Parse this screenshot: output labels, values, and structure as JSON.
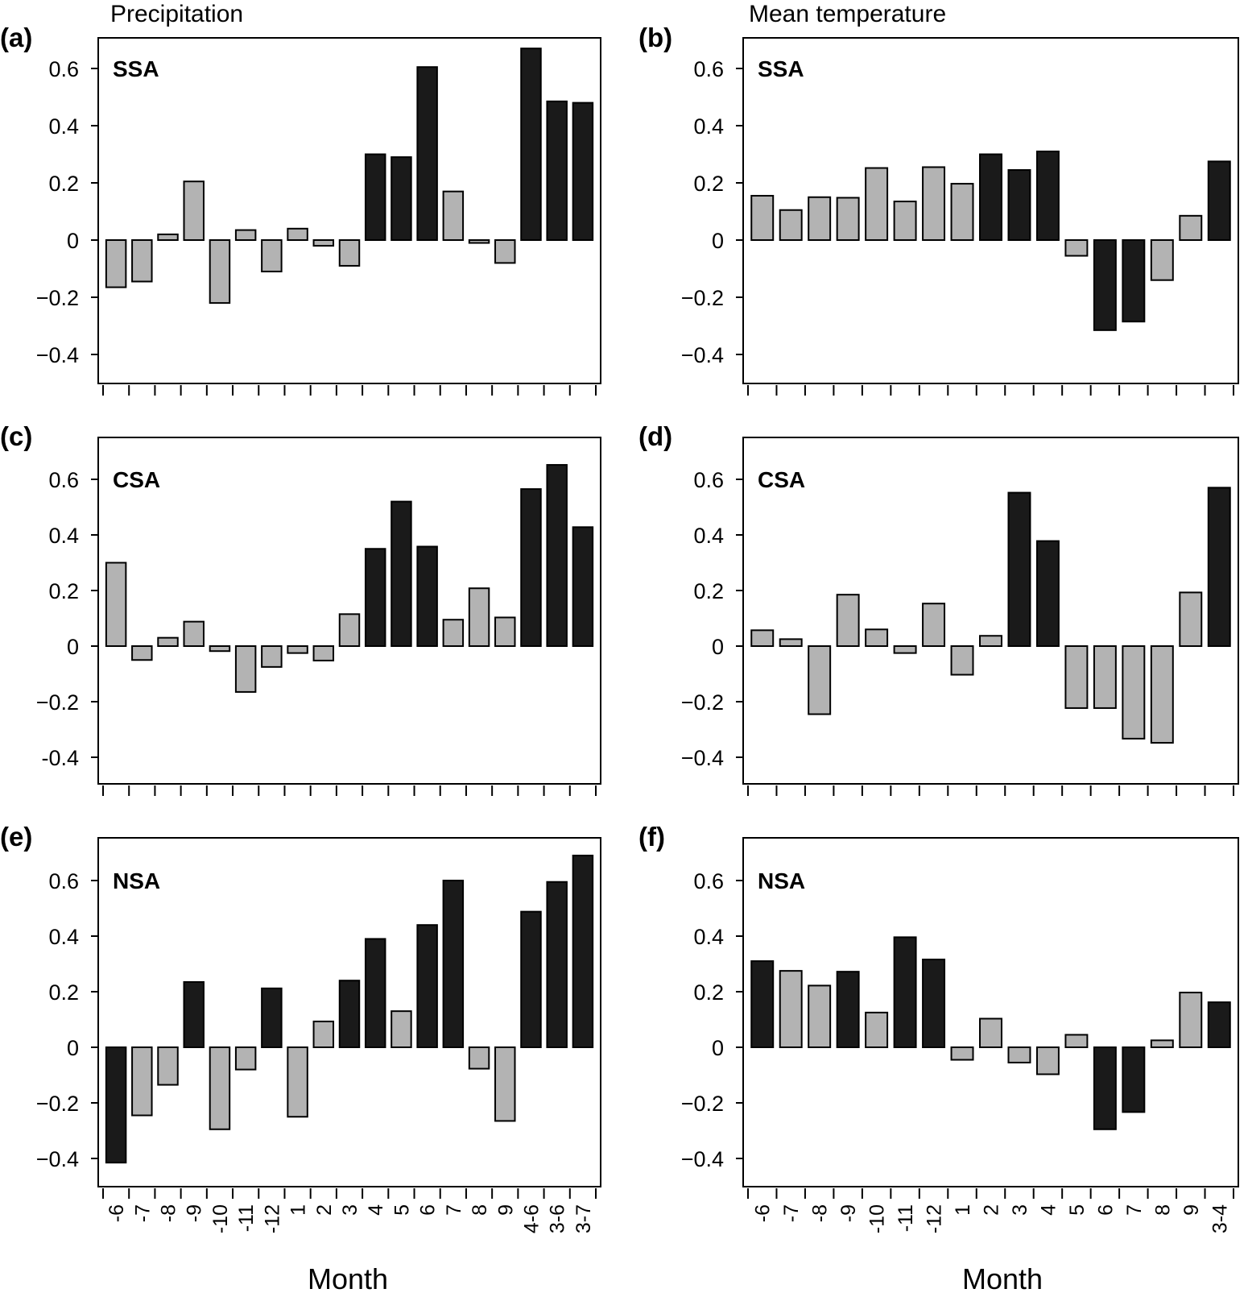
{
  "figure": {
    "column_titles": [
      "Precipitation",
      "Mean temperature"
    ],
    "x_axis_title": "Month",
    "colors": {
      "significant": "#1a1a1a",
      "not_significant": "#b3b3b3",
      "outline": "#000000"
    }
  },
  "chart_data": [
    {
      "type": "bar",
      "panel": "(a)",
      "region": "SSA",
      "variable": "Precipitation",
      "xlabel": "Month",
      "ylabel": "",
      "ylim": [
        -0.5,
        0.73
      ],
      "yticks": [
        -0.4,
        -0.2,
        0,
        0.2,
        0.4,
        0.6
      ],
      "ytick_labels": [
        "−0.4",
        "−0.2",
        "0",
        "0.2",
        "0.4",
        "0.6"
      ],
      "categories": [
        "-6",
        "-7",
        "-8",
        "-9",
        "-10",
        "-11",
        "-12",
        "1",
        "2",
        "3",
        "4",
        "5",
        "6",
        "7",
        "8",
        "9",
        "4-6",
        "3-6",
        "3-7"
      ],
      "values": [
        -0.165,
        -0.145,
        0.02,
        0.205,
        -0.22,
        0.035,
        -0.11,
        0.04,
        -0.02,
        -0.09,
        0.3,
        0.29,
        0.605,
        0.17,
        -0.01,
        -0.08,
        0.67,
        0.485,
        0.48
      ],
      "significant": [
        false,
        false,
        false,
        false,
        false,
        false,
        false,
        false,
        false,
        false,
        true,
        true,
        true,
        false,
        false,
        false,
        true,
        true,
        true
      ]
    },
    {
      "type": "bar",
      "panel": "(b)",
      "region": "SSA",
      "variable": "Mean temperature",
      "xlabel": "Month",
      "ylabel": "",
      "ylim": [
        -0.5,
        0.73
      ],
      "yticks": [
        -0.4,
        -0.2,
        0,
        0.2,
        0.4,
        0.6
      ],
      "ytick_labels": [
        "−0.4",
        "−0.2",
        "0",
        "0.2",
        "0.4",
        "0.6"
      ],
      "categories": [
        "-6",
        "-7",
        "-8",
        "-9",
        "-10",
        "-11",
        "-12",
        "1",
        "2",
        "3",
        "4",
        "5",
        "6",
        "7",
        "8",
        "9",
        "3-4"
      ],
      "values": [
        0.155,
        0.105,
        0.15,
        0.148,
        0.252,
        0.135,
        0.255,
        0.197,
        0.3,
        0.245,
        0.31,
        -0.055,
        -0.315,
        -0.285,
        -0.14,
        0.085,
        0.275
      ],
      "significant": [
        false,
        false,
        false,
        false,
        false,
        false,
        false,
        false,
        true,
        true,
        true,
        false,
        true,
        true,
        false,
        false,
        true
      ]
    },
    {
      "type": "bar",
      "panel": "(c)",
      "region": "CSA",
      "variable": "Precipitation",
      "xlabel": "Month",
      "ylabel": "",
      "ylim": [
        -0.49,
        0.75
      ],
      "yticks": [
        -0.4,
        -0.2,
        0,
        0.2,
        0.4,
        0.6
      ],
      "ytick_labels": [
        "-0.4",
        "−0.2",
        "0",
        "0.2",
        "0.4",
        "0.6"
      ],
      "categories": [
        "-6",
        "-7",
        "-8",
        "-9",
        "-10",
        "-11",
        "-12",
        "1",
        "2",
        "3",
        "4",
        "5",
        "6",
        "7",
        "8",
        "9",
        "4-6",
        "3-6",
        "3-7"
      ],
      "values": [
        0.3,
        -0.05,
        0.03,
        0.088,
        -0.018,
        -0.165,
        -0.075,
        -0.025,
        -0.052,
        0.115,
        0.35,
        0.52,
        0.358,
        0.095,
        0.208,
        0.103,
        0.565,
        0.652,
        0.428
      ],
      "significant": [
        false,
        false,
        false,
        false,
        false,
        false,
        false,
        false,
        false,
        false,
        true,
        true,
        true,
        false,
        false,
        false,
        true,
        true,
        true
      ]
    },
    {
      "type": "bar",
      "panel": "(d)",
      "region": "CSA",
      "variable": "Mean temperature",
      "xlabel": "Month",
      "ylabel": "",
      "ylim": [
        -0.49,
        0.75
      ],
      "yticks": [
        -0.4,
        -0.2,
        0,
        0.2,
        0.4,
        0.6
      ],
      "ytick_labels": [
        "−0.4",
        "−0.2",
        "0",
        "0.2",
        "0.4",
        "0.6"
      ],
      "categories": [
        "-6",
        "-7",
        "-8",
        "-9",
        "-10",
        "-11",
        "-12",
        "1",
        "2",
        "3",
        "4",
        "5",
        "6",
        "7",
        "8",
        "9",
        "3-4"
      ],
      "values": [
        0.057,
        0.025,
        -0.245,
        0.185,
        0.06,
        -0.025,
        0.153,
        -0.103,
        0.037,
        0.552,
        0.378,
        -0.223,
        -0.223,
        -0.333,
        -0.348,
        0.193,
        0.57
      ],
      "significant": [
        false,
        false,
        false,
        false,
        false,
        false,
        false,
        false,
        false,
        true,
        true,
        false,
        false,
        false,
        false,
        false,
        true
      ]
    },
    {
      "type": "bar",
      "panel": "(e)",
      "region": "NSA",
      "variable": "Precipitation",
      "xlabel": "Month",
      "ylabel": "",
      "ylim": [
        -0.5,
        0.75
      ],
      "yticks": [
        -0.4,
        -0.2,
        0,
        0.2,
        0.4,
        0.6
      ],
      "ytick_labels": [
        "−0.4",
        "−0.2",
        "0",
        "0.2",
        "0.4",
        "0.6"
      ],
      "categories": [
        "-6",
        "-7",
        "-8",
        "-9",
        "-10",
        "-11",
        "-12",
        "1",
        "2",
        "3",
        "4",
        "5",
        "6",
        "7",
        "8",
        "9",
        "4-6",
        "3-6",
        "3-7"
      ],
      "values": [
        -0.415,
        -0.245,
        -0.135,
        0.235,
        -0.295,
        -0.08,
        0.212,
        -0.25,
        0.093,
        0.24,
        0.39,
        0.13,
        0.44,
        0.6,
        -0.077,
        -0.265,
        0.488,
        0.595,
        0.69
      ],
      "significant": [
        true,
        false,
        false,
        true,
        false,
        false,
        true,
        false,
        false,
        true,
        true,
        false,
        true,
        true,
        false,
        false,
        true,
        true,
        true
      ]
    },
    {
      "type": "bar",
      "panel": "(f)",
      "region": "NSA",
      "variable": "Mean temperature",
      "xlabel": "Month",
      "ylabel": "",
      "ylim": [
        -0.5,
        0.75
      ],
      "yticks": [
        -0.4,
        -0.2,
        0,
        0.2,
        0.4,
        0.6
      ],
      "ytick_labels": [
        "−0.4",
        "−0.2",
        "0",
        "0.2",
        "0.4",
        "0.6"
      ],
      "categories": [
        "-6",
        "-7",
        "-8",
        "-9",
        "-10",
        "-11",
        "-12",
        "1",
        "2",
        "3",
        "4",
        "5",
        "6",
        "7",
        "8",
        "9",
        "3-4"
      ],
      "values": [
        0.31,
        0.275,
        0.222,
        0.272,
        0.125,
        0.396,
        0.316,
        -0.045,
        0.103,
        -0.055,
        -0.097,
        0.045,
        -0.295,
        -0.233,
        0.025,
        0.197,
        0.162
      ],
      "significant": [
        true,
        false,
        false,
        true,
        false,
        true,
        true,
        false,
        false,
        false,
        false,
        false,
        true,
        true,
        false,
        false,
        true
      ]
    }
  ]
}
